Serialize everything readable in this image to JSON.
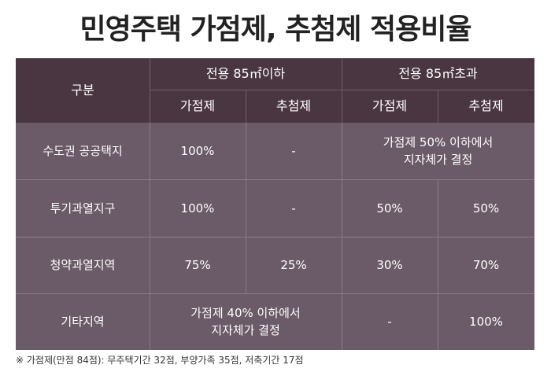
{
  "title": "민영주택 가점제, 추첨제 적용비율",
  "header": {
    "category": "구분",
    "group_under": "전용 85㎡이하",
    "group_over": "전용 85㎡초과",
    "points_under": "가점제",
    "lottery_under": "추첨제",
    "points_over": "가점제",
    "lottery_over": "추첨제"
  },
  "rows": [
    {
      "name": "수도권 공공택지",
      "points_under": "100%",
      "lottery_under": "-",
      "over_merged": "가점제 50% 이하에서\n지자체가 결정"
    },
    {
      "name": "투기과열지구",
      "points_under": "100%",
      "lottery_under": "-",
      "points_over": "50%",
      "lottery_over": "50%"
    },
    {
      "name": "청약과열지역",
      "points_under": "75%",
      "lottery_under": "25%",
      "points_over": "30%",
      "lottery_over": "70%"
    },
    {
      "name": "기타지역",
      "under_merged": "가점제 40% 이하에서\n지자체가 결정",
      "points_over": "-",
      "lottery_over": "100%"
    }
  ],
  "footnote": "※ 가점제(만점 84점): 무주택기간 32점, 부양가족 35점, 저축기간 17점"
}
